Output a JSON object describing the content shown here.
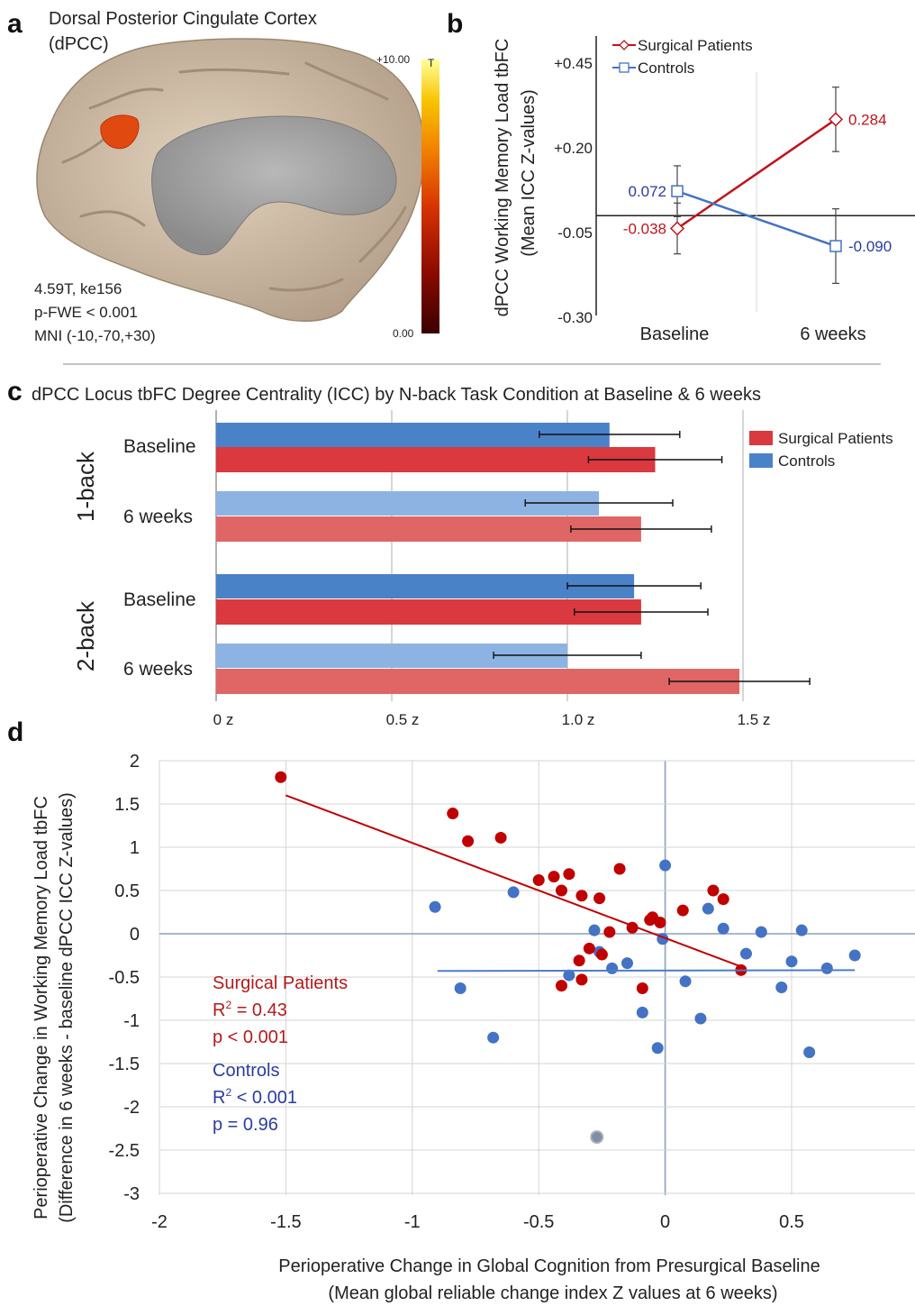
{
  "panel_a": {
    "label": "a",
    "title_line1": "Dorsal Posterior Cingulate Cortex",
    "title_line2": "(dPCC)",
    "stats": [
      "4.59T, ke156",
      "p-FWE < 0.001",
      "MNI (-10,-70,+30)"
    ],
    "colorbar": {
      "max_label": "+10.00",
      "min_label": "0.00",
      "unit_label": "T",
      "colors": [
        "#3a0000",
        "#8a0a00",
        "#d43000",
        "#f07a00",
        "#f8c400",
        "#ffff9a"
      ]
    }
  },
  "colors": {
    "surgical": "#c0141c",
    "controls": "#4472c4",
    "surgical_bar": "#d9393f",
    "surgical_bar_light": "#e06666",
    "controls_bar": "#4a82c8",
    "controls_bar_light": "#8db3e2",
    "axis": "#222222",
    "grid": "#c8c8c8"
  },
  "chart_data": [
    {
      "panel": "b",
      "type": "line",
      "ylabel_line1": "dPCC Working Memory Load tbFC",
      "ylabel_line2": "(Mean ICC Z-values)",
      "categories": [
        "Baseline",
        "6 weeks"
      ],
      "y_ticks": [
        "+0.45",
        "+0.20",
        "-0.05",
        "-0.30"
      ],
      "ylim": [
        -0.3,
        0.45
      ],
      "legend": "top-left",
      "series": [
        {
          "name": "Surgical Patients",
          "values": [
            -0.038,
            0.284
          ],
          "labels": [
            "-0.038",
            "0.284"
          ],
          "err": [
            0.075,
            0.095
          ],
          "marker": "diamond"
        },
        {
          "name": "Controls",
          "values": [
            0.072,
            -0.09
          ],
          "labels": [
            "0.072",
            "-0.090"
          ],
          "err": [
            0.075,
            0.11
          ],
          "marker": "square"
        }
      ]
    },
    {
      "panel": "c",
      "type": "bar",
      "title": "dPCC Locus tbFC Degree Centrality (ICC) by N-back Task Condition at Baseline & 6 weeks",
      "x_ticks": [
        "0 z",
        "0.5 z",
        "1.0 z",
        "1.5 z"
      ],
      "xlim": [
        0,
        1.5
      ],
      "legend": "top-right",
      "groups": [
        {
          "name": "1-back",
          "rows": [
            {
              "label": "Baseline",
              "controls": 1.12,
              "surgical": 1.25,
              "controls_err": 0.2,
              "surgical_err": 0.19
            },
            {
              "label": "6 weeks",
              "controls": 1.09,
              "surgical": 1.21,
              "controls_err": 0.21,
              "surgical_err": 0.2
            }
          ]
        },
        {
          "name": "2-back",
          "rows": [
            {
              "label": "Baseline",
              "controls": 1.19,
              "surgical": 1.21,
              "controls_err": 0.19,
              "surgical_err": 0.19
            },
            {
              "label": "6 weeks",
              "controls": 1.0,
              "surgical": 1.49,
              "controls_err": 0.21,
              "surgical_err": 0.2
            }
          ]
        }
      ],
      "series": [
        {
          "name": "Surgical Patients"
        },
        {
          "name": "Controls"
        }
      ]
    },
    {
      "panel": "d",
      "type": "scatter",
      "ylabel_line1": "Perioperative Change in Working Memory Load tbFC",
      "ylabel_line2": "(Difference in 6 weeks - baseline dPCC ICC Z-values)",
      "xlabel_line1": "Perioperative Change in Global Cognition from Presurgical Baseline",
      "xlabel_line2": "(Mean global reliable change index Z values at 6 weeks)",
      "x_ticks": [
        "-2",
        "-1.5",
        "-1",
        "-0.5",
        "0",
        "0.5"
      ],
      "y_ticks": [
        "2",
        "1.5",
        "1",
        "0.5",
        "0",
        "-0.5",
        "-1",
        "-1.5",
        "-2",
        "-2.5",
        "-3"
      ],
      "xlim": [
        -2,
        0.95
      ],
      "ylim": [
        -3,
        2
      ],
      "series": [
        {
          "name": "Surgical Patients",
          "r2": "= 0.43",
          "p": "p < 0.001",
          "fit": [
            [
              -1.5,
              1.6
            ],
            [
              0.3,
              -0.38
            ]
          ],
          "points": [
            [
              -1.52,
              1.81
            ],
            [
              -0.84,
              1.39
            ],
            [
              -0.78,
              1.07
            ],
            [
              -0.65,
              1.11
            ],
            [
              -0.5,
              0.62
            ],
            [
              -0.44,
              0.66
            ],
            [
              -0.38,
              0.69
            ],
            [
              -0.41,
              0.5
            ],
            [
              -0.33,
              0.44
            ],
            [
              -0.26,
              0.41
            ],
            [
              -0.18,
              0.75
            ],
            [
              -0.22,
              0.02
            ],
            [
              -0.13,
              0.07
            ],
            [
              -0.06,
              0.16
            ],
            [
              -0.05,
              0.19
            ],
            [
              -0.02,
              0.13
            ],
            [
              0.07,
              0.27
            ],
            [
              0.19,
              0.5
            ],
            [
              0.23,
              0.4
            ],
            [
              -0.3,
              -0.17
            ],
            [
              -0.25,
              -0.24
            ],
            [
              -0.34,
              -0.31
            ],
            [
              -0.33,
              -0.53
            ],
            [
              -0.41,
              -0.6
            ],
            [
              -0.09,
              -0.63
            ],
            [
              0.3,
              -0.42
            ]
          ]
        },
        {
          "name": "Controls",
          "r2": "< 0.001",
          "p": "p = 0.96",
          "fit": [
            [
              -0.9,
              -0.43
            ],
            [
              0.75,
              -0.42
            ]
          ],
          "points": [
            [
              -0.91,
              0.31
            ],
            [
              -0.6,
              0.48
            ],
            [
              -0.81,
              -0.63
            ],
            [
              -0.68,
              -1.2
            ],
            [
              -0.38,
              -0.48
            ],
            [
              -0.28,
              0.04
            ],
            [
              -0.26,
              -0.21
            ],
            [
              -0.21,
              -0.4
            ],
            [
              -0.15,
              -0.34
            ],
            [
              -0.09,
              -0.91
            ],
            [
              -0.03,
              -1.32
            ],
            [
              -0.01,
              -0.06
            ],
            [
              0.0,
              0.79
            ],
            [
              0.08,
              -0.55
            ],
            [
              0.14,
              -0.98
            ],
            [
              0.17,
              0.29
            ],
            [
              0.23,
              0.06
            ],
            [
              0.32,
              -0.23
            ],
            [
              0.38,
              0.02
            ],
            [
              0.46,
              -0.62
            ],
            [
              0.5,
              -0.32
            ],
            [
              0.54,
              0.04
            ],
            [
              0.57,
              -1.37
            ],
            [
              0.64,
              -0.4
            ],
            [
              0.75,
              -0.25
            ],
            [
              -0.27,
              -2.35
            ]
          ]
        }
      ]
    }
  ]
}
